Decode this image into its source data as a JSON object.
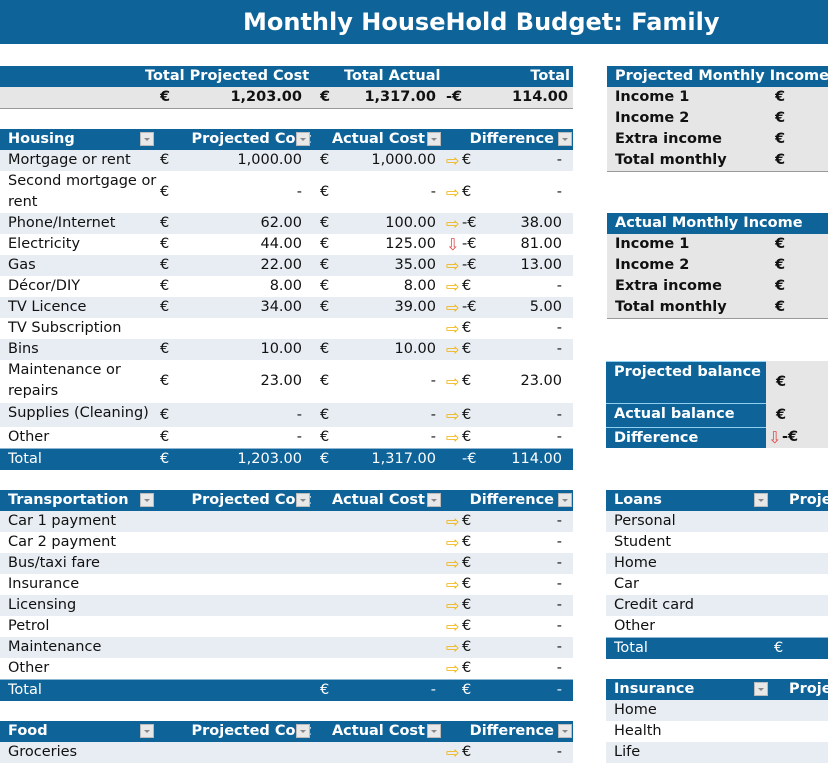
{
  "title": "Monthly HouseHold Budget: Family",
  "summary": {
    "headers": [
      "Total Projected Cost",
      "Total Actual",
      "Total"
    ],
    "values": [
      "€",
      "1,203.00",
      "€",
      "1,317.00",
      "-€",
      "114.00"
    ]
  },
  "housing": {
    "headers": [
      "Housing",
      "Projected Cost",
      "Actual Cost",
      "Difference"
    ],
    "rows": [
      [
        "Mortgage or rent",
        "€",
        "1,000.00",
        "€",
        "1,000.00",
        "right",
        "€",
        "-"
      ],
      [
        "Second mortgage or rent",
        "€",
        "-",
        "€",
        "-",
        "right",
        "€",
        "-"
      ],
      [
        "Phone/Internet",
        "€",
        "62.00",
        "€",
        "100.00",
        "right",
        "-€",
        "38.00"
      ],
      [
        "Electricity",
        "€",
        "44.00",
        "€",
        "125.00",
        "down",
        "-€",
        "81.00"
      ],
      [
        "Gas",
        "€",
        "22.00",
        "€",
        "35.00",
        "right",
        "-€",
        "13.00"
      ],
      [
        "Décor/DIY",
        "€",
        "8.00",
        "€",
        "8.00",
        "right",
        "€",
        "-"
      ],
      [
        "TV Licence",
        "€",
        "34.00",
        "€",
        "39.00",
        "right",
        "-€",
        "5.00"
      ],
      [
        "TV Subscription",
        "",
        "",
        "",
        "",
        "right",
        "€",
        "-"
      ],
      [
        "Bins",
        "€",
        "10.00",
        "€",
        "10.00",
        "right",
        "€",
        "-"
      ],
      [
        "Maintenance or repairs",
        "€",
        "23.00",
        "€",
        "-",
        "right",
        "€",
        "23.00"
      ],
      [
        "Supplies (Cleaning)",
        "€",
        "-",
        "€",
        "-",
        "right",
        "€",
        "-"
      ],
      [
        "Other",
        "€",
        "-",
        "€",
        "-",
        "right",
        "€",
        "-"
      ]
    ],
    "total": [
      "Total",
      "€",
      "1,203.00",
      "€",
      "1,317.00",
      "",
      "-€",
      "114.00"
    ]
  },
  "transportation": {
    "headers": [
      "Transportation",
      "Projected Cost",
      "Actual Cost",
      "Difference"
    ],
    "rows": [
      [
        "Car 1 payment",
        "",
        "",
        "",
        "",
        "right",
        "€",
        "-"
      ],
      [
        "Car 2 payment",
        "",
        "",
        "",
        "",
        "right",
        "€",
        "-"
      ],
      [
        "Bus/taxi fare",
        "",
        "",
        "",
        "",
        "right",
        "€",
        "-"
      ],
      [
        "Insurance",
        "",
        "",
        "",
        "",
        "right",
        "€",
        "-"
      ],
      [
        "Licensing",
        "",
        "",
        "",
        "",
        "right",
        "€",
        "-"
      ],
      [
        "Petrol",
        "",
        "",
        "",
        "",
        "right",
        "€",
        "-"
      ],
      [
        "Maintenance",
        "",
        "",
        "",
        "",
        "right",
        "€",
        "-"
      ],
      [
        "Other",
        "",
        "",
        "",
        "",
        "right",
        "€",
        "-"
      ]
    ],
    "total": [
      "Total",
      "",
      "",
      "€",
      "-",
      "",
      "€",
      "-"
    ]
  },
  "food": {
    "headers": [
      "Food",
      "Projected Cost",
      "Actual Cost",
      "Difference"
    ],
    "rows": [
      [
        "Groceries",
        "",
        "",
        "",
        "",
        "right",
        "€",
        "-"
      ]
    ]
  },
  "projected_income": {
    "header": "Projected Monthly Income",
    "rows": [
      [
        "Income 1",
        "€"
      ],
      [
        "Income 2",
        "€"
      ],
      [
        "Extra income",
        "€"
      ],
      [
        "Total monthly",
        "€"
      ]
    ]
  },
  "actual_income": {
    "header": "Actual Monthly Income",
    "rows": [
      [
        "Income 1",
        "€"
      ],
      [
        "Income 2",
        "€"
      ],
      [
        "Extra income",
        "€"
      ],
      [
        "Total monthly",
        "€"
      ]
    ]
  },
  "balance": {
    "rows": [
      [
        "Projected balance",
        "€",
        ""
      ],
      [
        "Actual balance",
        "€",
        ""
      ],
      [
        "Difference",
        "-€",
        "down"
      ]
    ]
  },
  "loans": {
    "headers": [
      "Loans",
      "Proje"
    ],
    "rows": [
      "Personal",
      "Student",
      "Home",
      "Car",
      "Credit card",
      "Other"
    ],
    "total": [
      "Total",
      "€"
    ]
  },
  "insurance": {
    "headers": [
      "Insurance",
      "Proje"
    ],
    "rows": [
      "Home",
      "Health",
      "Life"
    ]
  },
  "colors": {
    "header": "#0e6399",
    "row_shade": "#e8edf3",
    "arrow_neutral": "#f0b000",
    "arrow_down": "#e04848"
  }
}
